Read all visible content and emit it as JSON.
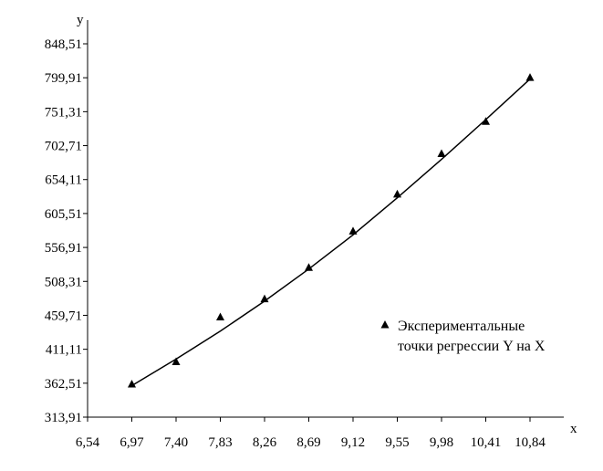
{
  "chart_data": {
    "type": "scatter",
    "xlabel": "x",
    "ylabel": "y",
    "xlim": [
      6.54,
      10.84
    ],
    "ylim": [
      313.91,
      848.51
    ],
    "x_ticks": [
      "6,54",
      "6,97",
      "7,40",
      "7,83",
      "8,26",
      "8,69",
      "9,12",
      "9,55",
      "9,98",
      "10,41",
      "10,84"
    ],
    "y_ticks": [
      "313,91",
      "362,51",
      "411,11",
      "459,71",
      "508,31",
      "556,91",
      "605,51",
      "654,11",
      "702,71",
      "751,31",
      "799,91",
      "848,51"
    ],
    "series": [
      {
        "name": "Экспериментальные точки регрессии Y на X",
        "marker": "triangle",
        "color": "#000000",
        "points": [
          {
            "x": 6.97,
            "y": 361.0
          },
          {
            "x": 7.4,
            "y": 393.0
          },
          {
            "x": 7.83,
            "y": 457.0
          },
          {
            "x": 8.26,
            "y": 483.0
          },
          {
            "x": 8.69,
            "y": 528.0
          },
          {
            "x": 9.12,
            "y": 580.0
          },
          {
            "x": 9.55,
            "y": 633.0
          },
          {
            "x": 9.98,
            "y": 691.0
          },
          {
            "x": 10.41,
            "y": 737.0
          },
          {
            "x": 10.84,
            "y": 800.0
          }
        ]
      },
      {
        "type": "line",
        "color": "#000000",
        "points": [
          {
            "x": 6.97,
            "y": 359.0
          },
          {
            "x": 7.4,
            "y": 397.0
          },
          {
            "x": 7.83,
            "y": 437.0
          },
          {
            "x": 8.26,
            "y": 480.0
          },
          {
            "x": 8.69,
            "y": 526.0
          },
          {
            "x": 9.12,
            "y": 575.0
          },
          {
            "x": 9.55,
            "y": 628.0
          },
          {
            "x": 9.98,
            "y": 683.0
          },
          {
            "x": 10.41,
            "y": 740.0
          },
          {
            "x": 10.84,
            "y": 798.0
          }
        ]
      }
    ],
    "legend": {
      "position": "right",
      "lines": [
        "Экспериментальные",
        "точки регрессии Y на X"
      ]
    },
    "grid": false
  }
}
